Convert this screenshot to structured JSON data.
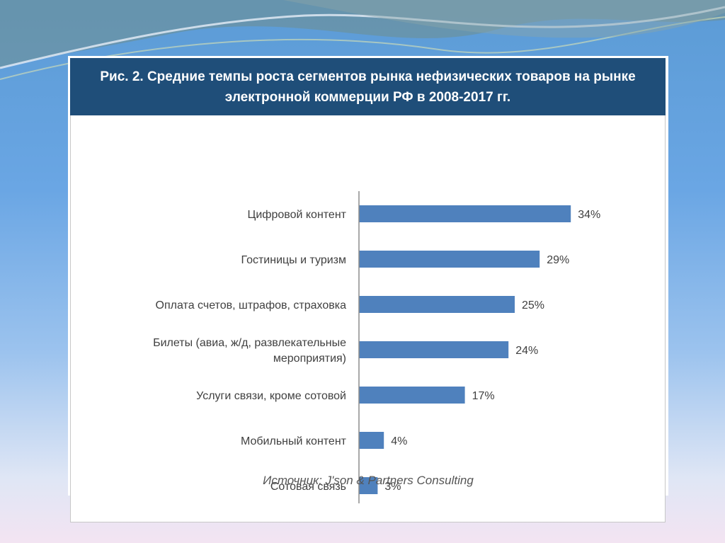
{
  "chart_data": {
    "type": "bar",
    "orientation": "horizontal",
    "title": "Рис. 2. Средние темпы роста сегментов рынка нефизических товаров на рынке электронной коммерции РФ в 2008-2017 гг.",
    "categories": [
      [
        "Цифровой контент"
      ],
      [
        "Гостиницы и туризм"
      ],
      [
        "Оплата счетов, штрафов, страховка"
      ],
      [
        "Билеты (авиа, ж/д, развлекательные",
        "мероприятия)"
      ],
      [
        "Услуги связи, кроме сотовой"
      ],
      [
        "Мобильный контент"
      ],
      [
        "Сотовая связь"
      ]
    ],
    "values": [
      34,
      29,
      25,
      24,
      17,
      4,
      3
    ],
    "data_labels": [
      "34%",
      "29%",
      "25%",
      "24%",
      "17%",
      "4%",
      "3%"
    ],
    "unit": "%",
    "xlim": [
      0,
      40
    ],
    "grid": false,
    "legend": "none",
    "bar_color": "#4f81bd",
    "source": "Источник: J'son & Partners Consulting"
  },
  "colors": {
    "title_bar": "#1f4e79",
    "bar": "#4f81bd"
  }
}
